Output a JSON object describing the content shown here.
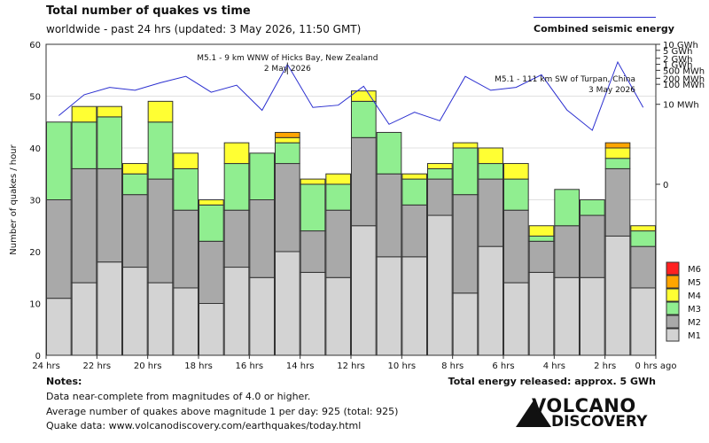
{
  "title": "Total number of quakes vs time",
  "subtitle": "worldwide - past 24 hrs (updated: 3 May 2026, 11:50 GMT)",
  "energy_legend_label": "Combined seismic energy",
  "notes": {
    "title": "Notes:",
    "lines": [
      "Data near-complete from magnitudes of 4.0 or higher.",
      "Average number of quakes above magnitude 1 per day: 925 (total: 925)",
      "Quake data: www.volcanodiscovery.com/earthquakes/today.html"
    ]
  },
  "total_energy": "Total energy released: approx. 5 GWh",
  "logo": {
    "line1": "VOLCANO",
    "line2": "DISCOVERY"
  },
  "colors": {
    "M1": "#d3d3d3",
    "M2": "#a9a9a9",
    "M3": "#90ee90",
    "M4": "#ffff33",
    "M5": "#ffa500",
    "M6": "#ff2020",
    "energy_line": "#2b2fd0",
    "bar_edge": "#333333"
  },
  "chart_data": {
    "type": "bar",
    "stacked": true,
    "ylabel": "Number of quakes / hour",
    "ylim": [
      0,
      60
    ],
    "y_ticks": [
      0,
      10,
      20,
      30,
      40,
      50,
      60
    ],
    "x_ticks": [
      "24 hrs",
      "22 hrs",
      "20 hrs",
      "18 hrs",
      "16 hrs",
      "14 hrs",
      "12 hrs",
      "10 hrs",
      "8 hrs",
      "6 hrs",
      "4 hrs",
      "2 hrs",
      "0 hrs ago"
    ],
    "bars_count": 24,
    "series": [
      {
        "name": "M1",
        "values": [
          11,
          14,
          18,
          17,
          14,
          13,
          10,
          17,
          15,
          20,
          16,
          15,
          25,
          19,
          19,
          27,
          12,
          21,
          14,
          16,
          15,
          15,
          23,
          13
        ]
      },
      {
        "name": "M2",
        "values": [
          19,
          22,
          18,
          14,
          20,
          15,
          12,
          11,
          15,
          17,
          8,
          13,
          17,
          16,
          10,
          7,
          19,
          13,
          14,
          6,
          10,
          12,
          13,
          8
        ]
      },
      {
        "name": "M3",
        "values": [
          15,
          9,
          10,
          4,
          11,
          8,
          7,
          9,
          9,
          4,
          9,
          5,
          7,
          8,
          5,
          2,
          9,
          3,
          6,
          1,
          7,
          3,
          2,
          3
        ]
      },
      {
        "name": "M4",
        "values": [
          0,
          3,
          2,
          2,
          4,
          3,
          1,
          4,
          0,
          1,
          1,
          2,
          2,
          0,
          1,
          1,
          1,
          3,
          3,
          2,
          0,
          0,
          2,
          1
        ]
      },
      {
        "name": "M5",
        "values": [
          0,
          0,
          0,
          0,
          0,
          0,
          0,
          0,
          0,
          1,
          0,
          0,
          0,
          0,
          0,
          0,
          0,
          0,
          0,
          0,
          0,
          0,
          1,
          0
        ]
      },
      {
        "name": "M6",
        "values": [
          0,
          0,
          0,
          0,
          0,
          0,
          0,
          0,
          0,
          0,
          0,
          0,
          0,
          0,
          0,
          0,
          0,
          0,
          0,
          0,
          0,
          0,
          0,
          0
        ]
      }
    ],
    "legend": [
      "M6",
      "M5",
      "M4",
      "M3",
      "M2",
      "M1"
    ],
    "energy_axis": {
      "labels": [
        "10 GWh",
        "5 GWh",
        "2 GWh",
        "1 GWh",
        "500 MWh",
        "200 MWh",
        "100 MWh",
        "10 MWh",
        "0"
      ],
      "values_kwh": [
        10000000,
        5000000,
        2000000,
        1000000,
        500000,
        200000,
        100000,
        10000,
        0
      ]
    },
    "energy_series": {
      "name": "Combined seismic energy",
      "values_kwh": [
        2700,
        30000,
        70000,
        50000,
        120000,
        250000,
        40000,
        90000,
        5000,
        1000000,
        7000,
        9000,
        80000,
        1000,
        4000,
        1500,
        250000,
        50000,
        70000,
        300000,
        5200,
        500,
        1300000,
        7000
      ]
    },
    "annotations": [
      {
        "text": "M5.1 - 9 km WNW of Hicks Bay, New Zealand",
        "date": "2 May 2026",
        "bar_index": 9
      },
      {
        "text": "M5.1 - 111 km SW of Turpan, China",
        "date": "3 May 2026",
        "bar_index": 22
      }
    ]
  }
}
